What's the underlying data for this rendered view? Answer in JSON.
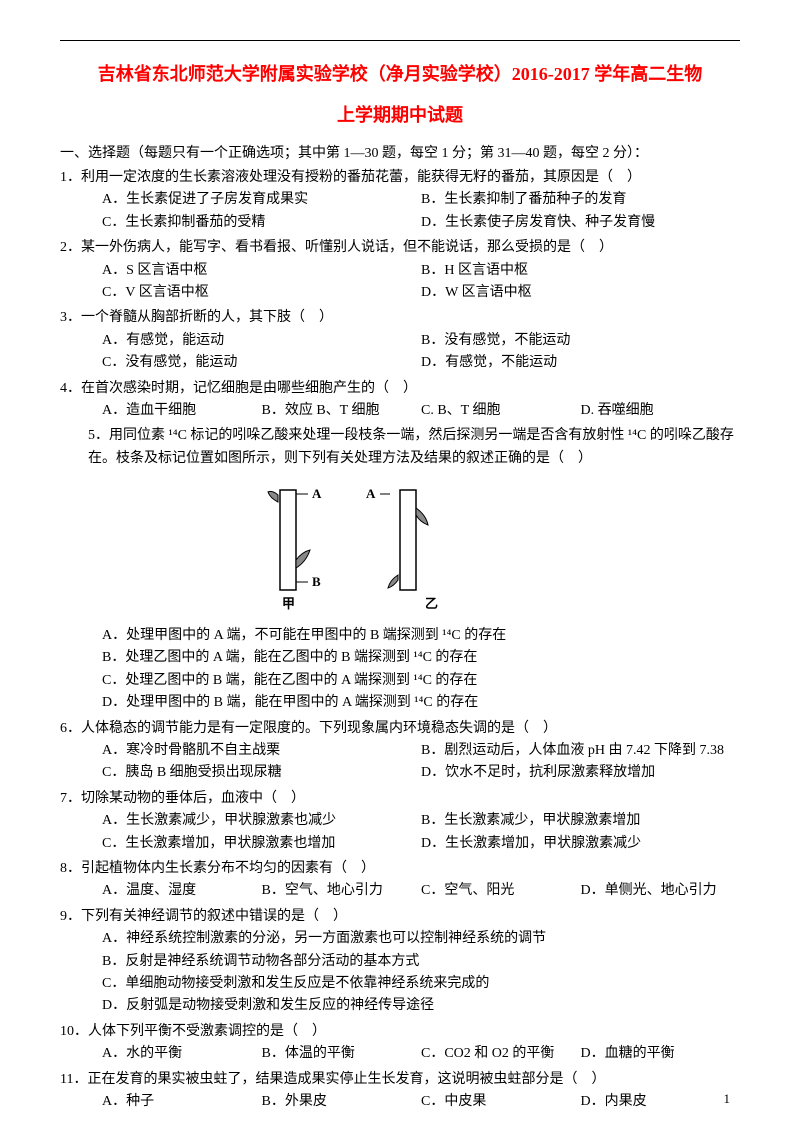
{
  "title_main": "吉林省东北师范大学附属实验学校（净月实验学校）2016-2017 学年高二生物",
  "title_sub": "上学期期中试题",
  "section_header": "一、选择题（每题只有一个正确选项；其中第 1—30 题，每空 1 分；第 31—40 题，每空 2 分）：",
  "questions": [
    {
      "num": "1．",
      "text": "利用一定浓度的生长素溶液处理没有授粉的番茄花蕾，能获得无籽的番茄，其原因是（　）",
      "options": [
        "A．生长素促进了子房发育成果实",
        "B．生长素抑制了番茄种子的发育",
        "C．生长素抑制番茄的受精",
        "D．生长素使子房发育快、种子发育慢"
      ],
      "cols": 2
    },
    {
      "num": "2．",
      "text": "某一外伤病人，能写字、看书看报、听懂别人说话，但不能说话，那么受损的是（　）",
      "options": [
        "A．S 区言语中枢",
        "B．H 区言语中枢",
        "C．V 区言语中枢",
        "D．W 区言语中枢"
      ],
      "cols": 2
    },
    {
      "num": "3．",
      "text": "一个脊髓从胸部折断的人，其下肢（　）",
      "options": [
        "A．有感觉，能运动",
        "B．没有感觉，不能运动",
        "C．没有感觉，能运动",
        "D．有感觉，不能运动"
      ],
      "cols": 2
    },
    {
      "num": "4．",
      "text": "在首次感染时期，记忆细胞是由哪些细胞产生的（　）",
      "options": [
        "A．造血干细胞",
        "B．效应 B、T 细胞",
        "C. B、T 细胞",
        "D. 吞噬细胞"
      ],
      "cols": 4
    },
    {
      "num": "5．",
      "text": "用同位素 ¹⁴C 标记的吲哚乙酸来处理一段枝条一端，然后探测另一端是否含有放射性 ¹⁴C 的吲哚乙酸存在。枝条及标记位置如图所示，则下列有关处理方法及结果的叙述正确的是（　）",
      "hasFigure": true,
      "options": [
        "A．处理甲图中的 A 端，不可能在甲图中的 B 端探测到 ¹⁴C 的存在",
        "B．处理乙图中的 A 端，能在乙图中的 B 端探测到 ¹⁴C 的存在",
        "C．处理乙图中的 B 端，能在乙图中的 A 端探测到 ¹⁴C 的存在",
        "D．处理甲图中的 B 端，能在甲图中的 A 端探测到  ¹⁴C 的存在"
      ],
      "cols": 1
    },
    {
      "num": "6．",
      "text": "人体稳态的调节能力是有一定限度的。下列现象属内环境稳态失调的是（　）",
      "options": [
        "A．寒冷时骨骼肌不自主战栗",
        "B．剧烈运动后，人体血液 pH 由 7.42 下降到 7.38",
        "C．胰岛 B 细胞受损出现尿糖",
        "D．饮水不足时，抗利尿激素释放增加"
      ],
      "cols": 2
    },
    {
      "num": "7．",
      "text": "切除某动物的垂体后，血液中（　）",
      "options": [
        "A．生长激素减少，甲状腺激素也减少",
        "B．生长激素减少，甲状腺激素增加",
        "C．生长激素增加，甲状腺激素也增加",
        "D．生长激素增加，甲状腺激素减少"
      ],
      "cols": 2
    },
    {
      "num": "8．",
      "text": "引起植物体内生长素分布不均匀的因素有（　）",
      "options": [
        "A．温度、湿度",
        "B．空气、地心引力",
        "C．空气、阳光",
        "D．单侧光、地心引力"
      ],
      "cols": 4
    },
    {
      "num": "9．",
      "text": "下列有关神经调节的叙述中错误的是（　）",
      "options": [
        "A．神经系统控制激素的分泌，另一方面激素也可以控制神经系统的调节",
        "B．反射是神经系统调节动物各部分活动的基本方式",
        "C．单细胞动物接受刺激和发生反应是不依靠神经系统来完成的",
        "D．反射弧是动物接受刺激和发生反应的神经传导途径"
      ],
      "cols": 1
    },
    {
      "num": "10．",
      "text": "人体下列平衡不受激素调控的是（　）",
      "options": [
        "A．水的平衡",
        "B．体温的平衡",
        "C．CO2 和 O2 的平衡",
        "D．血糖的平衡"
      ],
      "cols": 4
    },
    {
      "num": "11．",
      "text": "正在发育的果实被虫蛀了，结果造成果实停止生长发育，这说明被虫蛀部分是（　）",
      "options": [
        "A．种子",
        "B．外果皮",
        "C．中皮果",
        "D．内果皮"
      ],
      "cols": 4
    }
  ],
  "figure": {
    "labels": {
      "a": "A",
      "b": "B",
      "jia": "甲",
      "yi": "乙"
    },
    "colors": {
      "stroke": "#000000",
      "fill": "#888888"
    }
  },
  "page_number": "1"
}
